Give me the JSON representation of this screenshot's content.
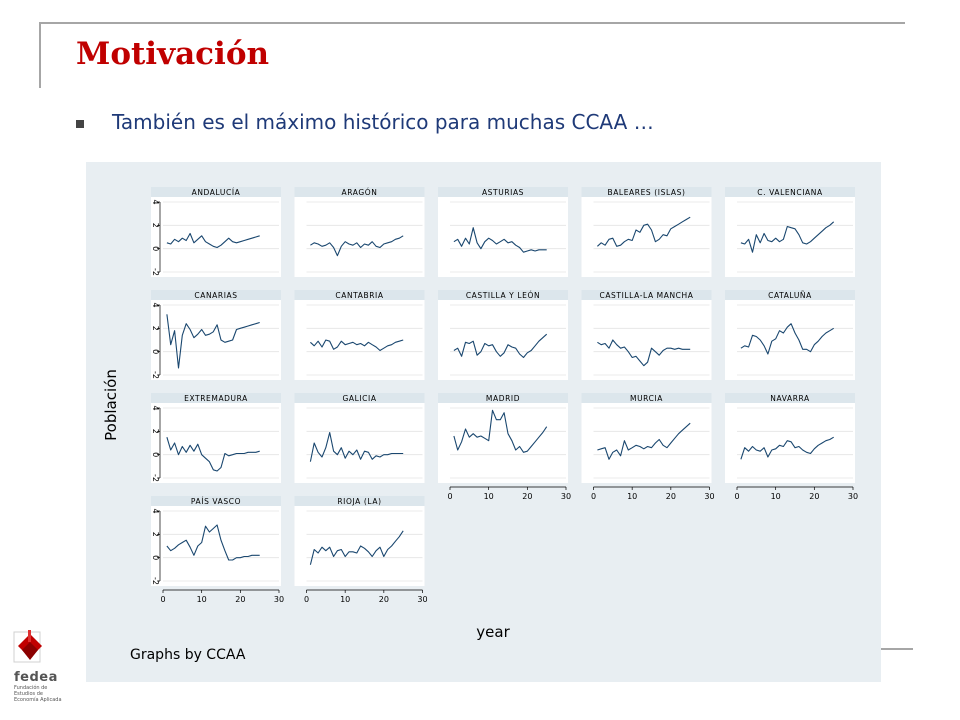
{
  "slide": {
    "title": "Motivación",
    "bullet": "También es el máximo histórico para muchas CCAA …"
  },
  "logo": {
    "brand": "fedea",
    "sub_lines": [
      "Fundación de",
      "Estudios de",
      "Economía Aplicada"
    ]
  },
  "colors": {
    "title": "#c00000",
    "text": "#1f3a78",
    "line": "#1a476f",
    "panel_bg": "#e8eef2",
    "header_bg": "#dce6ec"
  },
  "chart_data": {
    "type": "line",
    "ylabel": "Población",
    "xlabel": "year",
    "note": "Graphs by CCAA",
    "xlim": [
      0,
      30
    ],
    "ylim": [
      -2,
      4
    ],
    "xticks": [
      0,
      10,
      20,
      30
    ],
    "yticks": [
      -2,
      0,
      2,
      4
    ],
    "ytick_labels": [
      "-2",
      "0",
      "2",
      "4"
    ],
    "xtick_labels": [
      "0",
      "10",
      "20",
      "30"
    ],
    "x": [
      1,
      2,
      3,
      4,
      5,
      6,
      7,
      8,
      9,
      10,
      11,
      12,
      13,
      14,
      15,
      16,
      17,
      18,
      19,
      20,
      21,
      22,
      23,
      24,
      25
    ],
    "series": [
      {
        "name": "ANDALUCÍA",
        "values": [
          0.5,
          0.4,
          0.8,
          0.6,
          0.9,
          0.7,
          1.3,
          0.5,
          0.8,
          1.1,
          0.6,
          0.4,
          0.2,
          0.1,
          0.3,
          0.6,
          0.9,
          0.6,
          0.5,
          0.6,
          0.7,
          0.8,
          0.9,
          1.0,
          1.1
        ]
      },
      {
        "name": "ARAGÓN",
        "values": [
          0.3,
          0.5,
          0.4,
          0.2,
          0.3,
          0.5,
          0.1,
          -0.6,
          0.2,
          0.6,
          0.4,
          0.3,
          0.5,
          0.1,
          0.4,
          0.3,
          0.6,
          0.2,
          0.1,
          0.4,
          0.5,
          0.6,
          0.8,
          0.9,
          1.1
        ]
      },
      {
        "name": "ASTURIAS",
        "values": [
          0.6,
          0.8,
          0.2,
          0.9,
          0.4,
          1.8,
          0.5,
          0.0,
          0.6,
          0.9,
          0.7,
          0.4,
          0.6,
          0.8,
          0.5,
          0.6,
          0.3,
          0.1,
          -0.3,
          -0.2,
          -0.1,
          -0.2,
          -0.1,
          -0.1,
          -0.1
        ]
      },
      {
        "name": "BALEARES (ISLAS)",
        "values": [
          0.2,
          0.5,
          0.3,
          0.8,
          0.9,
          0.2,
          0.3,
          0.6,
          0.8,
          0.7,
          1.6,
          1.4,
          2.0,
          2.1,
          1.6,
          0.6,
          0.8,
          1.2,
          1.1,
          1.7,
          1.9,
          2.1,
          2.3,
          2.5,
          2.7
        ]
      },
      {
        "name": "C. VALENCIANA",
        "values": [
          0.5,
          0.4,
          0.8,
          -0.3,
          1.2,
          0.5,
          1.3,
          0.7,
          0.6,
          0.9,
          0.6,
          0.8,
          1.9,
          1.8,
          1.7,
          1.2,
          0.5,
          0.4,
          0.6,
          0.9,
          1.2,
          1.5,
          1.8,
          2.0,
          2.3
        ]
      },
      {
        "name": "CANARIAS",
        "values": [
          3.2,
          0.6,
          1.8,
          -1.4,
          1.4,
          2.4,
          1.9,
          1.2,
          1.5,
          1.9,
          1.4,
          1.5,
          1.7,
          2.3,
          1.0,
          0.8,
          0.9,
          1.0,
          1.9,
          2.0,
          2.1,
          2.2,
          2.3,
          2.4,
          2.5
        ]
      },
      {
        "name": "CANTABRIA",
        "values": [
          0.8,
          0.5,
          0.9,
          0.4,
          1.0,
          0.9,
          0.2,
          0.4,
          0.9,
          0.6,
          0.7,
          0.8,
          0.6,
          0.7,
          0.5,
          0.8,
          0.6,
          0.4,
          0.1,
          0.3,
          0.5,
          0.6,
          0.8,
          0.9,
          1.0
        ]
      },
      {
        "name": "CASTILLA Y LEÓN",
        "values": [
          0.1,
          0.3,
          -0.4,
          0.8,
          0.7,
          0.9,
          -0.3,
          0.0,
          0.7,
          0.5,
          0.6,
          0.0,
          -0.4,
          -0.1,
          0.6,
          0.4,
          0.3,
          -0.2,
          -0.5,
          -0.1,
          0.1,
          0.5,
          0.9,
          1.2,
          1.5
        ]
      },
      {
        "name": "CASTILLA-LA MANCHA",
        "values": [
          0.8,
          0.6,
          0.7,
          0.3,
          1.0,
          0.6,
          0.3,
          0.4,
          0.0,
          -0.5,
          -0.4,
          -0.8,
          -1.2,
          -0.9,
          0.3,
          0.0,
          -0.3,
          0.1,
          0.3,
          0.3,
          0.2,
          0.3,
          0.2,
          0.2,
          0.2
        ]
      },
      {
        "name": "CATALUÑA",
        "values": [
          0.3,
          0.5,
          0.4,
          1.4,
          1.3,
          1.0,
          0.5,
          -0.2,
          0.9,
          1.1,
          1.8,
          1.6,
          2.1,
          2.4,
          1.6,
          1.0,
          0.2,
          0.2,
          0.0,
          0.6,
          0.9,
          1.3,
          1.6,
          1.8,
          2.0
        ]
      },
      {
        "name": "EXTREMADURA",
        "values": [
          1.5,
          0.4,
          1.0,
          0.0,
          0.7,
          0.2,
          0.8,
          0.3,
          0.9,
          0.0,
          -0.3,
          -0.6,
          -1.3,
          -1.4,
          -1.1,
          0.1,
          -0.1,
          0.0,
          0.1,
          0.1,
          0.1,
          0.2,
          0.2,
          0.2,
          0.3
        ]
      },
      {
        "name": "GALICIA",
        "values": [
          -0.6,
          1.0,
          0.2,
          -0.2,
          0.6,
          1.9,
          0.3,
          0.0,
          0.6,
          -0.3,
          0.3,
          0.0,
          0.4,
          -0.4,
          0.3,
          0.2,
          -0.4,
          -0.1,
          -0.2,
          0.0,
          0.0,
          0.1,
          0.1,
          0.1,
          0.1
        ]
      },
      {
        "name": "MADRID",
        "values": [
          1.6,
          0.4,
          1.1,
          2.2,
          1.5,
          1.8,
          1.5,
          1.6,
          1.4,
          1.2,
          3.8,
          3.0,
          3.0,
          3.6,
          1.8,
          1.2,
          0.4,
          0.7,
          0.2,
          0.3,
          0.7,
          1.1,
          1.5,
          1.9,
          2.4
        ]
      },
      {
        "name": "MURCIA",
        "values": [
          0.4,
          0.5,
          0.6,
          -0.4,
          0.2,
          0.4,
          -0.1,
          1.2,
          0.4,
          0.6,
          0.8,
          0.7,
          0.5,
          0.7,
          0.6,
          1.0,
          1.3,
          0.8,
          0.6,
          1.0,
          1.4,
          1.8,
          2.1,
          2.4,
          2.7
        ]
      },
      {
        "name": "NAVARRA",
        "values": [
          -0.4,
          0.6,
          0.3,
          0.7,
          0.4,
          0.3,
          0.6,
          -0.2,
          0.4,
          0.5,
          0.8,
          0.7,
          1.2,
          1.1,
          0.6,
          0.7,
          0.4,
          0.2,
          0.1,
          0.5,
          0.8,
          1.0,
          1.2,
          1.3,
          1.5
        ]
      },
      {
        "name": "PAÍS VASCO",
        "values": [
          1.0,
          0.6,
          0.8,
          1.1,
          1.3,
          1.5,
          0.9,
          0.2,
          1.0,
          1.3,
          2.7,
          2.2,
          2.5,
          2.8,
          1.5,
          0.6,
          -0.2,
          -0.2,
          0.0,
          0.0,
          0.1,
          0.1,
          0.2,
          0.2,
          0.2
        ]
      },
      {
        "name": "RIOJA (LA)",
        "values": [
          -0.6,
          0.7,
          0.4,
          0.9,
          0.6,
          0.9,
          0.1,
          0.6,
          0.7,
          0.1,
          0.5,
          0.5,
          0.4,
          1.0,
          0.8,
          0.5,
          0.1,
          0.6,
          0.9,
          0.1,
          0.7,
          1.0,
          1.4,
          1.8,
          2.3
        ]
      }
    ]
  }
}
